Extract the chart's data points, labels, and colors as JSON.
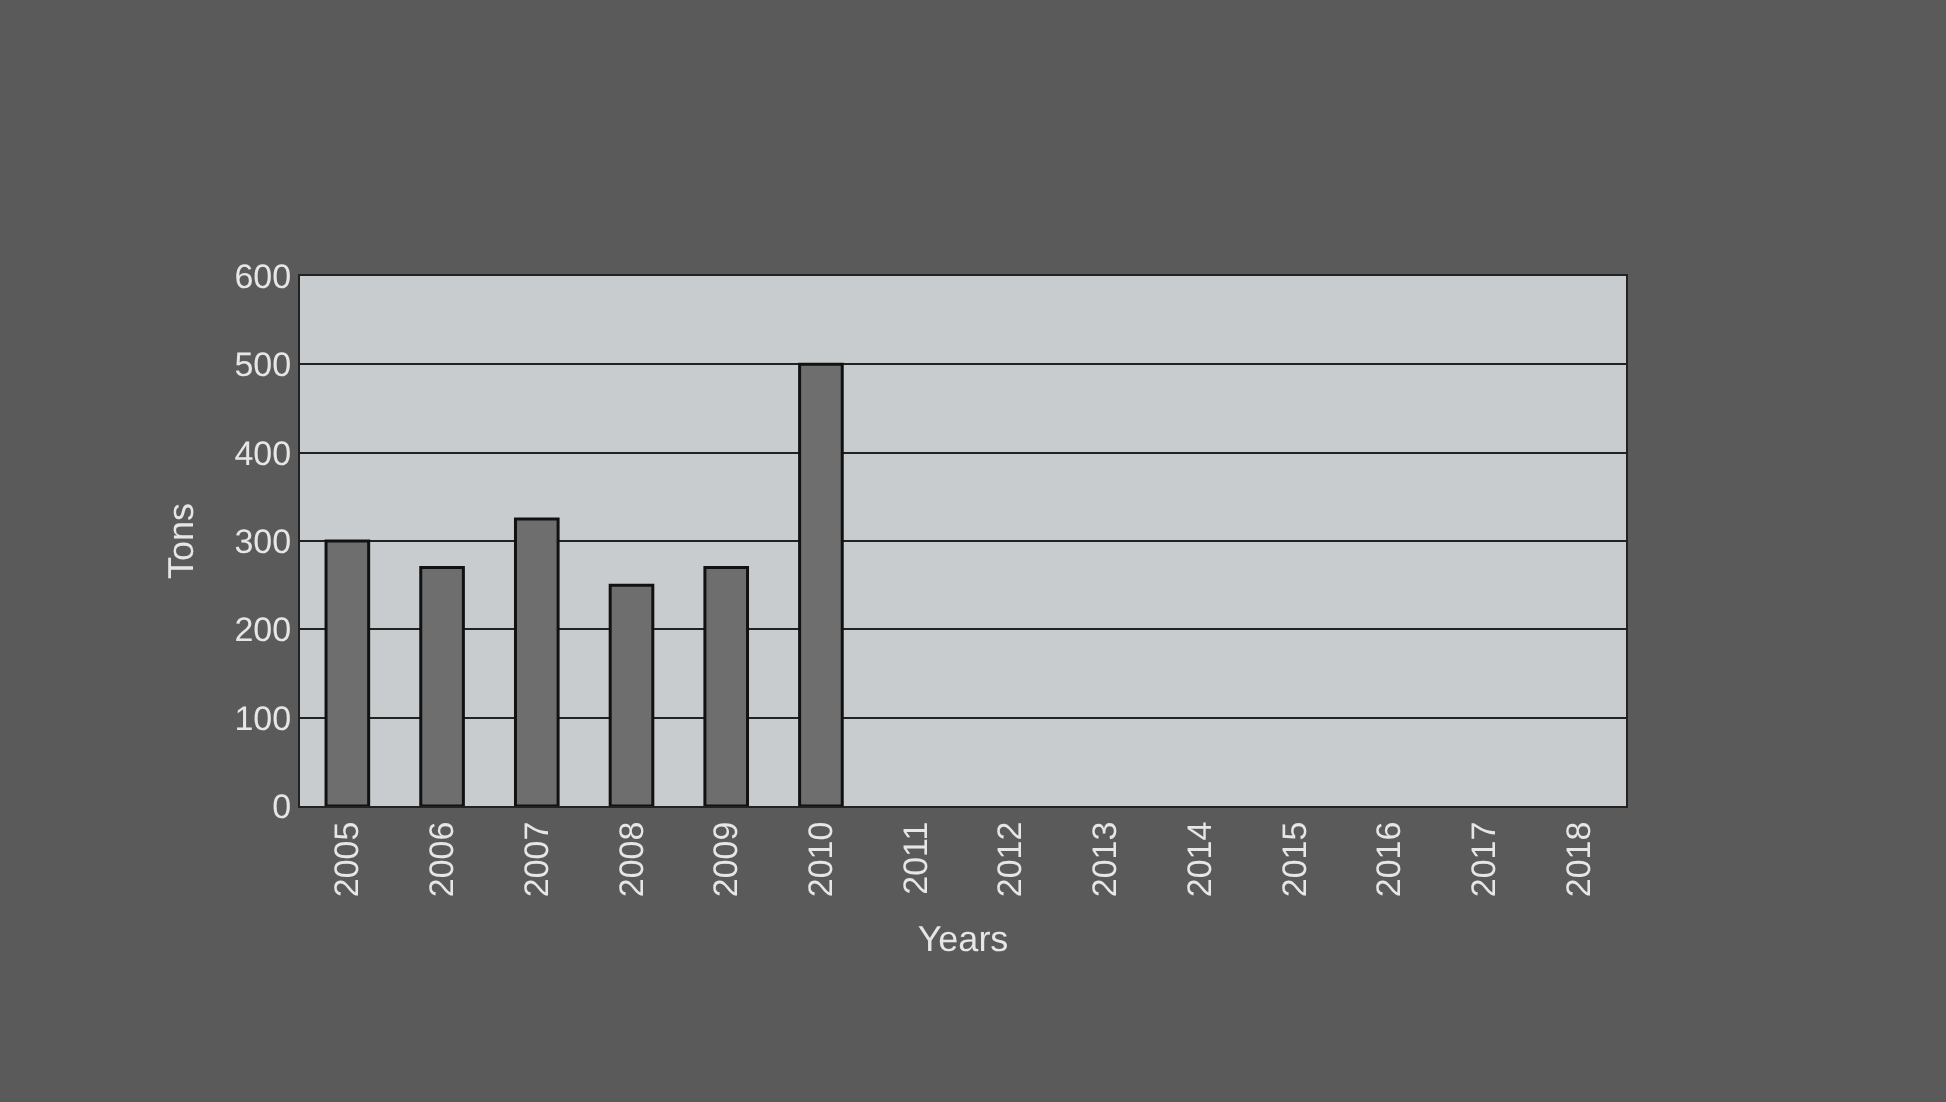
{
  "chart_data": {
    "type": "bar",
    "xlabel": "Years",
    "ylabel": "Tons",
    "categories": [
      "2005",
      "2006",
      "2007",
      "2008",
      "2009",
      "2010",
      "2011",
      "2012",
      "2013",
      "2014",
      "2015",
      "2016",
      "2017",
      "2018"
    ],
    "values": [
      300,
      270,
      325,
      250,
      270,
      500,
      null,
      null,
      null,
      null,
      null,
      null,
      null,
      null
    ],
    "color": "#6e6e6e",
    "ylim": [
      0,
      600
    ],
    "yticks": [
      0,
      100,
      200,
      300,
      400,
      500,
      600
    ],
    "grid": "y"
  }
}
